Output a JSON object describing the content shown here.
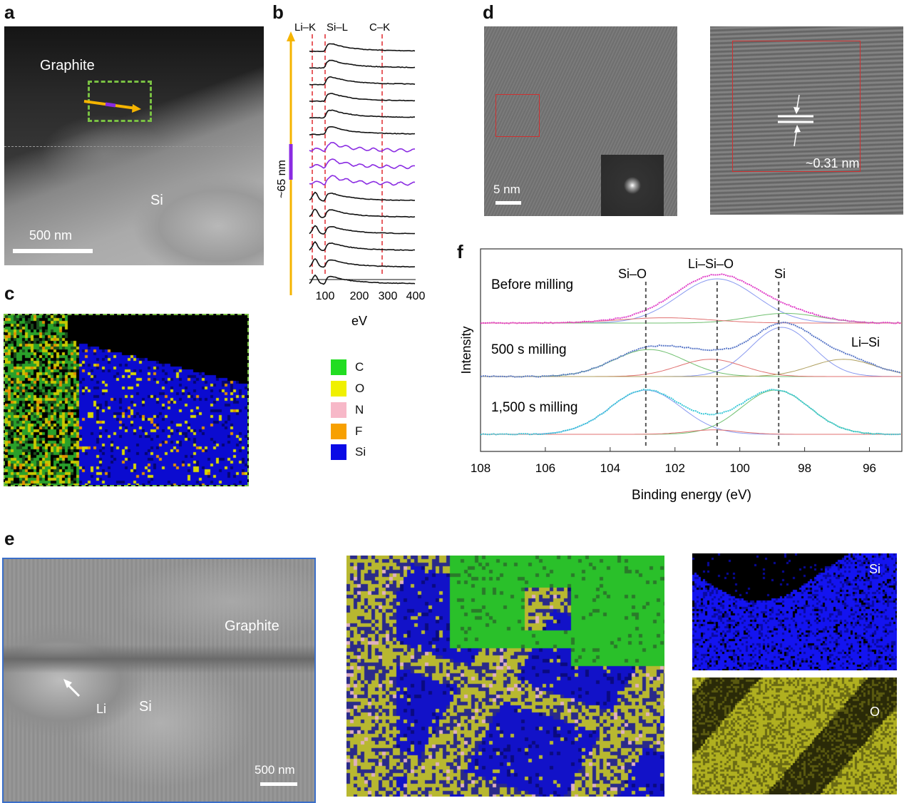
{
  "panels": {
    "a": "a",
    "b": "b",
    "c": "c",
    "d": "d",
    "e": "e",
    "f": "f"
  },
  "panel_a": {
    "graphite": "Graphite",
    "si": "Si",
    "scale": "500 nm"
  },
  "panel_b": {
    "edges": [
      "Li–K",
      "Si–L",
      "C–K"
    ],
    "thickness": "~65 nm",
    "xticks": [
      "100",
      "200",
      "300",
      "400"
    ],
    "xlabel": "eV",
    "colors": {
      "black": "#111111",
      "purple": "#8a2be2",
      "arrow": "#f5b400",
      "guide": "#e0282e"
    }
  },
  "legend": [
    {
      "label": "C",
      "color": "#22dd22"
    },
    {
      "label": "O",
      "color": "#f0f000"
    },
    {
      "label": "N",
      "color": "#f7b8c8"
    },
    {
      "label": "F",
      "color": "#f7a000"
    },
    {
      "label": "Si",
      "color": "#0a0ae6"
    }
  ],
  "panel_d": {
    "scale": "5 nm",
    "spacing": "~0.31 nm"
  },
  "panel_e": {
    "graphite": "Graphite",
    "li": "Li",
    "si": "Si",
    "scale": "500 nm",
    "map_si": "Si",
    "map_o": "O"
  },
  "chart_data": {
    "type": "line",
    "xlabel": "Binding energy (eV)",
    "ylabel": "Intensity",
    "xlim": [
      108,
      95
    ],
    "xticks": [
      "108",
      "106",
      "104",
      "102",
      "100",
      "98",
      "96"
    ],
    "peaks": [
      "Si–O",
      "Li–Si–O",
      "Si"
    ],
    "peak_positions": [
      102.9,
      100.7,
      98.8
    ],
    "extra_label": "Li–Si",
    "series": [
      {
        "name": "Before milling",
        "color": "#e040c8",
        "components": [
          [
            100.7,
            1.0,
            1.2
          ],
          [
            98.6,
            0.22,
            1.1
          ],
          [
            102.3,
            0.12,
            1.4
          ]
        ]
      },
      {
        "name": "500 s milling",
        "color": "#5a78c8",
        "components": [
          [
            98.7,
            1.0,
            0.95
          ],
          [
            102.8,
            0.55,
            1.1
          ],
          [
            100.9,
            0.35,
            1.0
          ],
          [
            96.8,
            0.35,
            1.0
          ]
        ]
      },
      {
        "name": "1,500 s milling",
        "color": "#3ac8d8",
        "components": [
          [
            102.9,
            1.0,
            1.1
          ],
          [
            98.9,
            1.0,
            1.05
          ],
          [
            100.8,
            0.1,
            0.8
          ]
        ]
      }
    ]
  }
}
